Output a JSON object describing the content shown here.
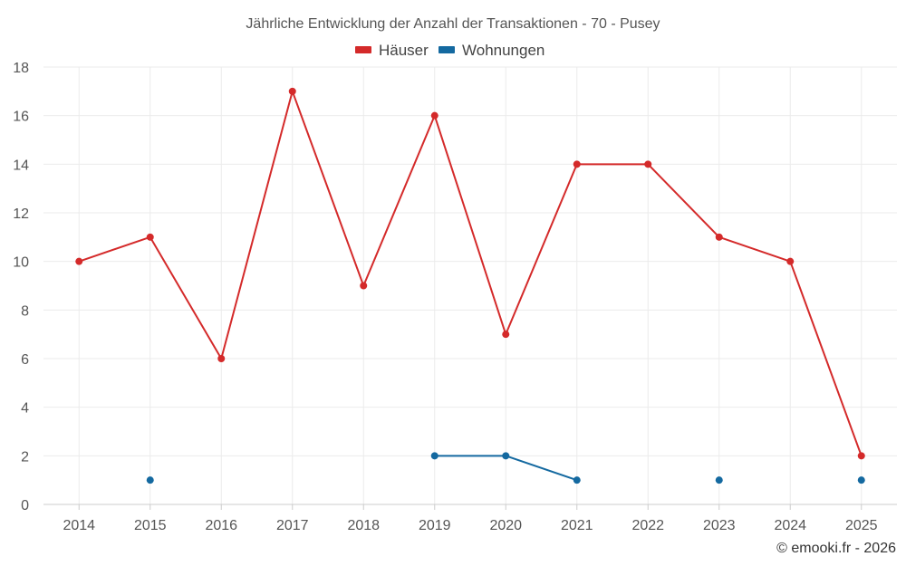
{
  "chart_data": {
    "type": "line",
    "title": "Jährliche Entwicklung der Anzahl der Transaktionen - 70 - Pusey",
    "categories": [
      "2014",
      "2015",
      "2016",
      "2017",
      "2018",
      "2019",
      "2020",
      "2021",
      "2022",
      "2023",
      "2024",
      "2025"
    ],
    "series": [
      {
        "name": "Häuser",
        "color": "#d42a2a",
        "values": [
          10,
          11,
          6,
          17,
          9,
          16,
          7,
          14,
          14,
          11,
          10,
          2
        ]
      },
      {
        "name": "Wohnungen",
        "color": "#1469a0",
        "values": [
          null,
          1,
          null,
          null,
          null,
          2,
          2,
          1,
          null,
          1,
          null,
          1
        ]
      }
    ],
    "ylim": [
      0,
      18
    ],
    "yticks": [
      0,
      2,
      4,
      6,
      8,
      10,
      12,
      14,
      16,
      18
    ],
    "xlabel": "",
    "ylabel": "",
    "grid": true,
    "legend_position": "top-center"
  },
  "credit": "© emooki.fr - 2026"
}
